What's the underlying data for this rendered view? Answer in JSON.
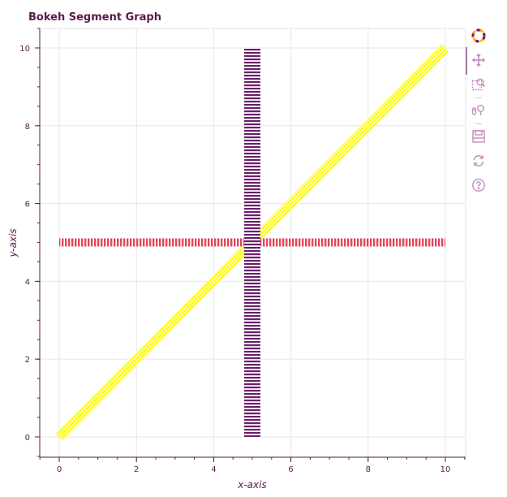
{
  "colors": {
    "title": "#5a1a4e",
    "axis": "#5a1a4e",
    "grid": "#e5e5e5",
    "toolbar_icon": "#c58bbf"
  },
  "chart_data": {
    "type": "line",
    "title": "Bokeh Segment Graph",
    "xlabel": "x-axis",
    "ylabel": "y-axis",
    "xlim": [
      -0.5,
      10.5
    ],
    "ylim": [
      -0.5,
      10.5
    ],
    "x_ticks": [
      "0",
      "2",
      "4",
      "6",
      "8",
      "10"
    ],
    "y_ticks": [
      "0",
      "2",
      "4",
      "6",
      "8",
      "10"
    ],
    "grid": true,
    "segments": [
      {
        "x0": 0,
        "y0": 0,
        "x1": 10,
        "y1": 10,
        "color": "#ffff00",
        "hatch": "diagonal",
        "width": 12
      },
      {
        "x0": 0,
        "y0": 5,
        "x1": 10,
        "y1": 5,
        "color": "#e0485d",
        "hatch": "vertical",
        "width": 10
      },
      {
        "x0": 5,
        "y0": 0,
        "x1": 5,
        "y1": 10,
        "color": "#6b1f6b",
        "hatch": "horizontal",
        "width": 20
      }
    ]
  },
  "toolbar": {
    "tools": [
      {
        "name": "bokeh-logo-icon",
        "interactable": false
      },
      {
        "name": "pan-tool-icon",
        "interactable": true,
        "active": true
      },
      {
        "name": "box-zoom-tool-icon",
        "interactable": true
      },
      {
        "name": "wheel-zoom-tool-icon",
        "interactable": true
      },
      {
        "name": "save-tool-icon",
        "interactable": true
      },
      {
        "name": "reset-tool-icon",
        "interactable": true
      },
      {
        "name": "help-tool-icon",
        "interactable": true
      }
    ]
  }
}
